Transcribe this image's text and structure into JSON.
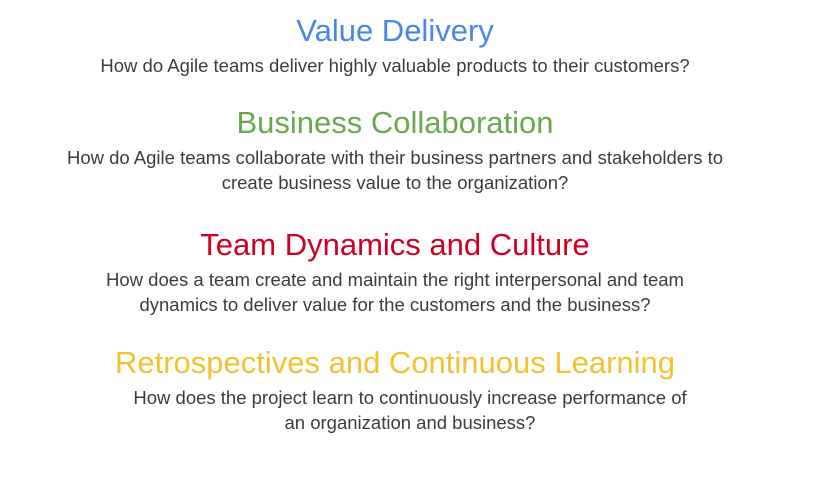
{
  "sections": [
    {
      "title": "Value Delivery",
      "color": "#4a86e8",
      "question_lines": [
        "How do Agile teams deliver highly valuable products to their customers?"
      ]
    },
    {
      "title": "Business Collaboration",
      "color": "#6aa84f",
      "question_lines": [
        "How do Agile teams collaborate with their business partners and stakeholders to",
        "create business value to the organization?"
      ]
    },
    {
      "title": "Team Dynamics and Culture",
      "color": "#cc0022",
      "question_lines": [
        "How does a team create and maintain the right interpersonal and team",
        "dynamics to deliver value for the customers and the business?"
      ]
    },
    {
      "title": "Retrospectives and Continuous Learning",
      "color": "#f1c232",
      "question_lines": [
        "How does the project learn to continuously increase performance of",
        "an organization and business?"
      ]
    }
  ]
}
